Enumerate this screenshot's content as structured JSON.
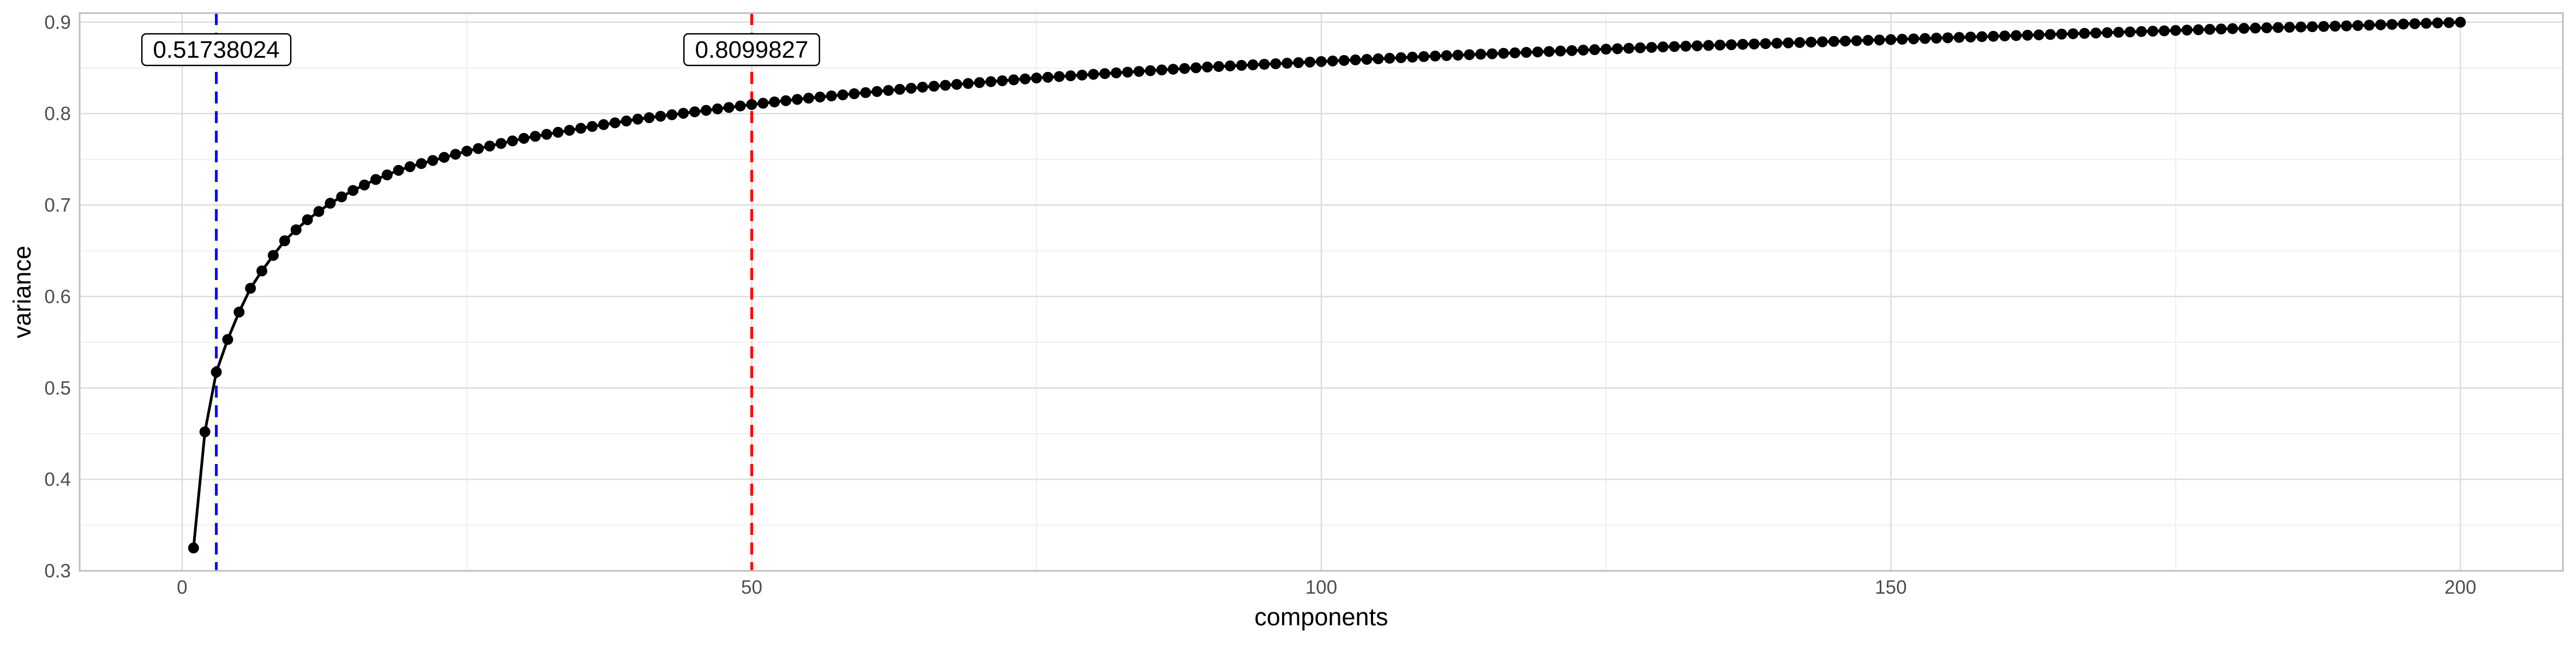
{
  "chart_data": {
    "type": "line",
    "title": "",
    "xlabel": "components",
    "ylabel": "variance",
    "xlim": [
      -9,
      209
    ],
    "ylim": [
      0.3,
      0.91
    ],
    "x_ticks": [
      0,
      50,
      100,
      150,
      200
    ],
    "y_ticks": [
      0.3,
      0.4,
      0.5,
      0.6,
      0.7,
      0.8,
      0.9
    ],
    "grid": true,
    "legend": "none",
    "series": [
      {
        "color": "#000000",
        "markers": true,
        "x": [
          1,
          2,
          3,
          4,
          5,
          6,
          7,
          8,
          9,
          10,
          11,
          12,
          13,
          14,
          15,
          16,
          17,
          18,
          19,
          20,
          25,
          30,
          35,
          40,
          45,
          50,
          55,
          60,
          65,
          70,
          75,
          80,
          85,
          90,
          95,
          100,
          110,
          120,
          130,
          140,
          150,
          160,
          170,
          180,
          190,
          200
        ],
        "y": [
          0.325,
          0.452,
          0.5174,
          0.553,
          0.583,
          0.609,
          0.628,
          0.645,
          0.661,
          0.673,
          0.684,
          0.693,
          0.702,
          0.709,
          0.716,
          0.722,
          0.728,
          0.733,
          0.738,
          0.742,
          0.759,
          0.773,
          0.784,
          0.794,
          0.802,
          0.81,
          0.817,
          0.823,
          0.829,
          0.834,
          0.839,
          0.843,
          0.847,
          0.851,
          0.854,
          0.857,
          0.863,
          0.868,
          0.873,
          0.877,
          0.881,
          0.885,
          0.889,
          0.893,
          0.896,
          0.9
        ]
      }
    ],
    "reference_lines": [
      {
        "x": 3,
        "color": "#0000ff",
        "style": "dashed",
        "label": "0.51738024",
        "label_at_y": 0.87
      },
      {
        "x": 50,
        "color": "#ff0000",
        "style": "dashed",
        "label": "0.8099827",
        "label_at_y": 0.87
      }
    ],
    "colors": {
      "panel_border": "#bfbfbf",
      "grid_major": "#dcdcdc",
      "grid_minor": "#efefef",
      "tick_text": "#4d4d4d",
      "axis_title": "#000000"
    }
  }
}
